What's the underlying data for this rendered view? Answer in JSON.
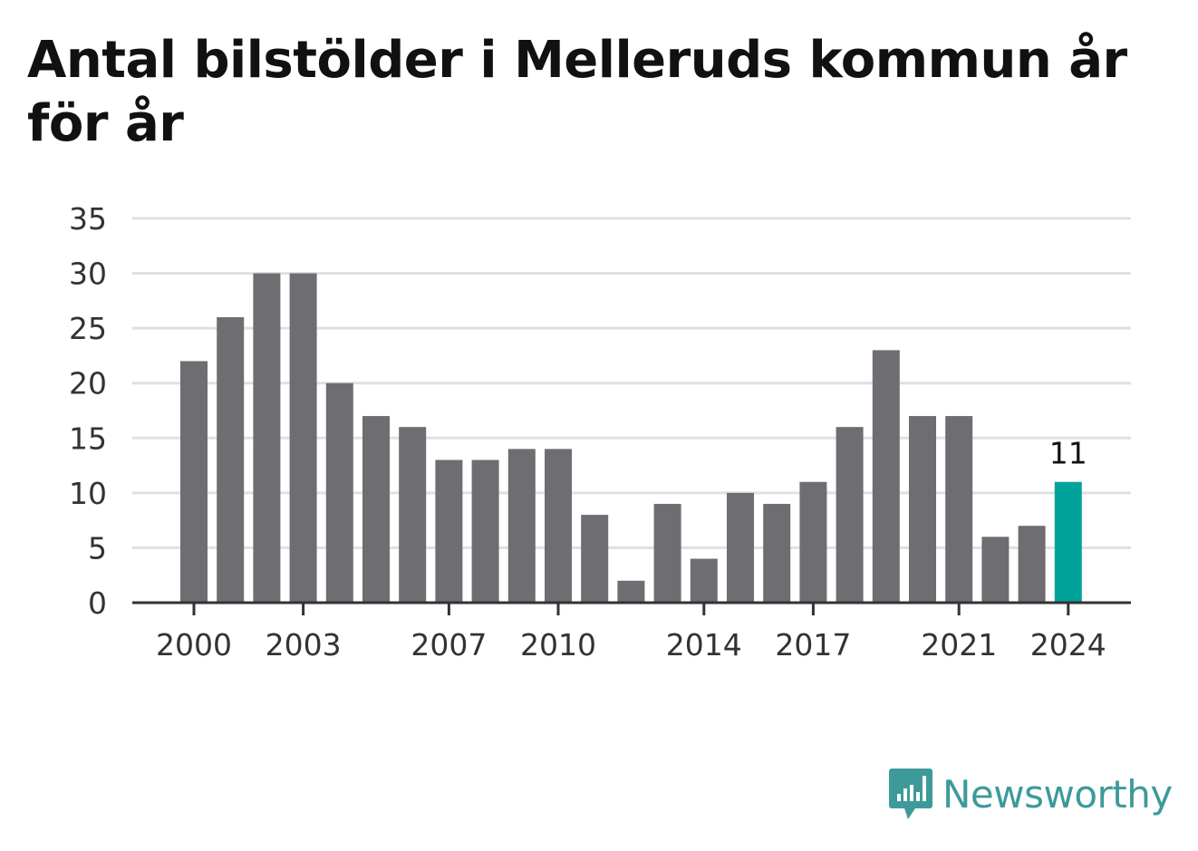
{
  "title": "Antal bilstölder i Melleruds kommun år för år",
  "brand": {
    "name": "Newsworthy",
    "icon": "newsworthy-logo-icon",
    "color": "#3e9a9a"
  },
  "colors": {
    "bar": "#6e6d72",
    "highlight": "#00a39a",
    "grid": "#e0e0e0",
    "axis": "#333333"
  },
  "chart_data": {
    "type": "bar",
    "title": "Antal bilstölder i Melleruds kommun år för år",
    "xlabel": "",
    "ylabel": "",
    "categories": [
      2000,
      2001,
      2002,
      2003,
      2004,
      2005,
      2006,
      2007,
      2008,
      2009,
      2010,
      2011,
      2012,
      2013,
      2014,
      2015,
      2016,
      2017,
      2018,
      2019,
      2020,
      2021,
      2022,
      2023,
      2024
    ],
    "values": [
      22,
      26,
      30,
      30,
      20,
      17,
      16,
      13,
      13,
      14,
      14,
      8,
      2,
      9,
      4,
      10,
      9,
      11,
      16,
      23,
      17,
      17,
      6,
      7,
      11
    ],
    "highlight_index": 24,
    "highlight_label": "11",
    "ylim": [
      0,
      35
    ],
    "yticks": [
      0,
      5,
      10,
      15,
      20,
      25,
      30,
      35
    ],
    "xticks": [
      2000,
      2003,
      2007,
      2010,
      2014,
      2017,
      2021,
      2024
    ],
    "grid": true,
    "legend": "none"
  }
}
